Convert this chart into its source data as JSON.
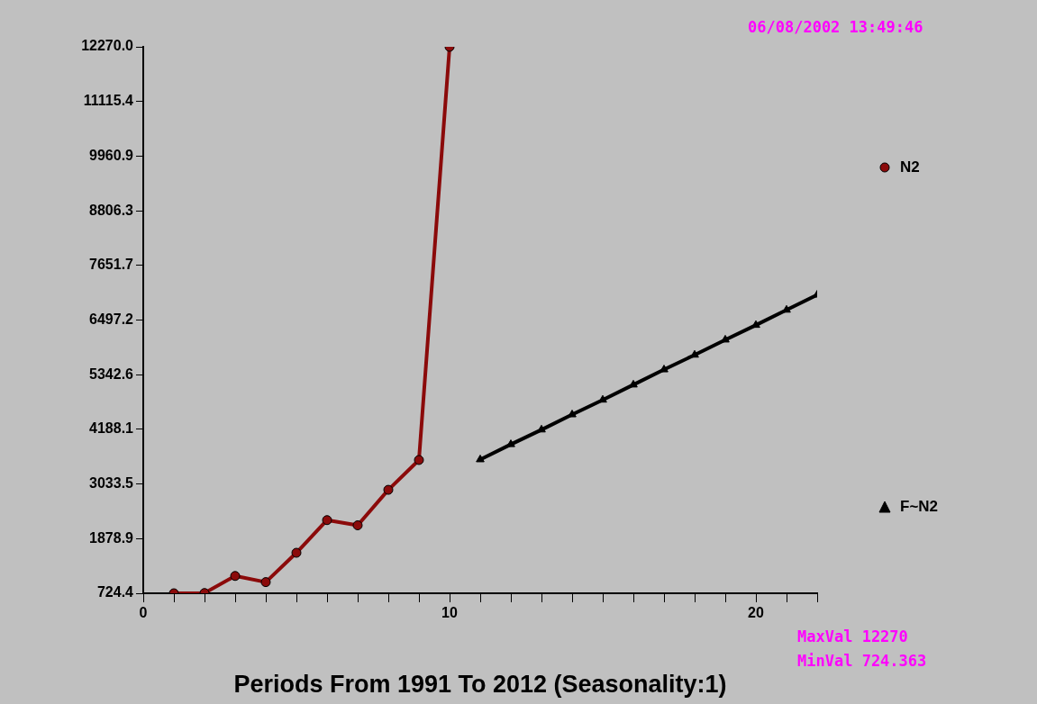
{
  "chart_data": {
    "type": "line",
    "xlabel": "Periods From 1991 To 2012 (Seasonality:1)",
    "annotations": [
      "06/08/2002 13:49:46",
      "MaxVal 12270",
      "MinVal 724.363"
    ],
    "xlim": [
      0,
      22
    ],
    "xticks": [
      0,
      {
        "value": 1,
        "label": null
      },
      {
        "value": 2,
        "label": null
      },
      {
        "value": 3,
        "label": null
      },
      {
        "value": 4,
        "label": null
      },
      {
        "value": 5,
        "label": null
      },
      {
        "value": 6,
        "label": null
      },
      {
        "value": 7,
        "label": null
      },
      {
        "value": 8,
        "label": null
      },
      {
        "value": 9,
        "label": null
      },
      10,
      {
        "value": 11,
        "label": null
      },
      {
        "value": 12,
        "label": null
      },
      {
        "value": 13,
        "label": null
      },
      {
        "value": 14,
        "label": null
      },
      {
        "value": 15,
        "label": null
      },
      {
        "value": 16,
        "label": null
      },
      {
        "value": 17,
        "label": null
      },
      {
        "value": 18,
        "label": null
      },
      {
        "value": 19,
        "label": null
      },
      20,
      {
        "value": 21,
        "label": null
      },
      {
        "value": 22,
        "label": null
      }
    ],
    "ylim": [
      724.363,
      12270
    ],
    "yticks": [
      {
        "value": 724.363,
        "label": "724.4"
      },
      1878.9,
      3033.5,
      4188.1,
      5342.6,
      6497.2,
      7651.7,
      8806.3,
      9960.9,
      11115.4,
      {
        "value": 12270,
        "label": "12270.0"
      }
    ],
    "legend": "right",
    "line_style": "solid",
    "series": [
      {
        "name": "N2",
        "color": "#8b0a0a",
        "marker": "circle",
        "x": [
          1,
          2,
          3,
          4,
          5,
          6,
          7,
          8,
          9,
          10
        ],
        "values": [
          724.363,
          730,
          1090,
          960,
          1580,
          2270,
          2160,
          2910,
          3540,
          12270
        ]
      },
      {
        "name": "F~N2",
        "color": "#000000",
        "marker": "triangle",
        "x": [
          11,
          12,
          13,
          14,
          15,
          16,
          17,
          18,
          19,
          20,
          21,
          22
        ],
        "values": [
          3550,
          3870,
          4180,
          4500,
          4810,
          5130,
          5450,
          5760,
          6080,
          6390,
          6710,
          7030
        ]
      }
    ]
  }
}
